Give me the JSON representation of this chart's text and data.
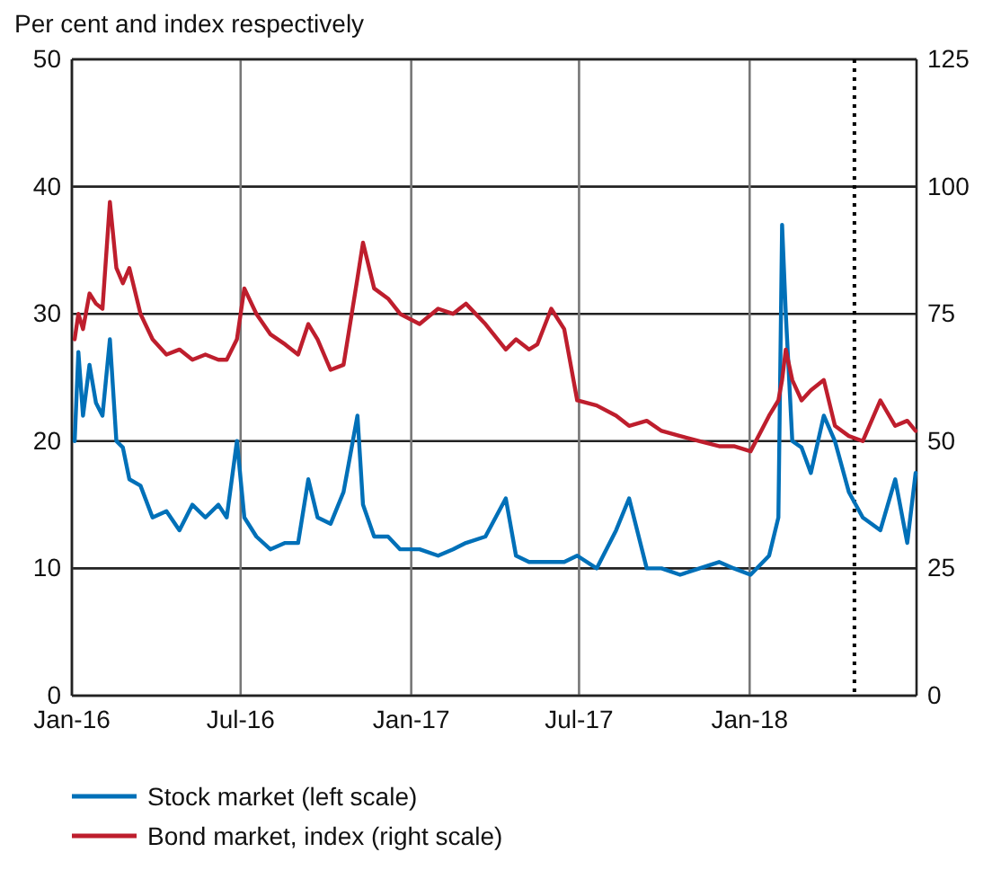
{
  "chart_data": {
    "type": "line",
    "title": "Per cent and index respectively",
    "xlim": [
      "2016-01-01",
      "2018-06-30"
    ],
    "xticks": [
      {
        "value": "2016-01-01",
        "label": "Jan-16"
      },
      {
        "value": "2016-07-01",
        "label": "Jul-16"
      },
      {
        "value": "2017-01-01",
        "label": "Jan-17"
      },
      {
        "value": "2017-07-01",
        "label": "Jul-17"
      },
      {
        "value": "2018-01-01",
        "label": "Jan-18"
      }
    ],
    "ylim": [
      0,
      50
    ],
    "yticks": [
      0,
      10,
      20,
      30,
      40,
      50
    ],
    "y2lim": [
      0,
      125
    ],
    "y2ticks": [
      0,
      25,
      50,
      75,
      100,
      125
    ],
    "grid": true,
    "legend": "bottom",
    "ref_lines": [
      {
        "axis": "x",
        "value": "2018-04-24",
        "label": null,
        "color": "#000000",
        "line_style": "dotted"
      }
    ],
    "x": [
      "2016-01-04",
      "2016-01-08",
      "2016-01-13",
      "2016-01-20",
      "2016-01-27",
      "2016-02-03",
      "2016-02-11",
      "2016-02-18",
      "2016-02-25",
      "2016-03-03",
      "2016-03-15",
      "2016-03-28",
      "2016-04-12",
      "2016-04-26",
      "2016-05-10",
      "2016-05-24",
      "2016-06-07",
      "2016-06-16",
      "2016-06-27",
      "2016-07-05",
      "2016-07-18",
      "2016-08-02",
      "2016-08-18",
      "2016-09-01",
      "2016-09-12",
      "2016-09-22",
      "2016-10-06",
      "2016-10-20",
      "2016-11-04",
      "2016-11-10",
      "2016-11-22",
      "2016-12-07",
      "2016-12-20",
      "2017-01-10",
      "2017-01-30",
      "2017-02-15",
      "2017-03-01",
      "2017-03-22",
      "2017-04-13",
      "2017-04-24",
      "2017-05-08",
      "2017-05-17",
      "2017-06-01",
      "2017-06-15",
      "2017-06-29",
      "2017-07-20",
      "2017-08-10",
      "2017-08-24",
      "2017-09-12",
      "2017-09-28",
      "2017-10-18",
      "2017-11-08",
      "2017-11-29",
      "2017-12-15",
      "2018-01-02",
      "2018-01-22",
      "2018-02-01",
      "2018-02-05",
      "2018-02-09",
      "2018-02-16",
      "2018-02-26",
      "2018-03-08",
      "2018-03-22",
      "2018-04-03",
      "2018-04-18",
      "2018-05-03",
      "2018-05-22",
      "2018-06-07",
      "2018-06-20",
      "2018-06-29"
    ],
    "series": [
      {
        "name": "Stock market (left scale)",
        "color": "#0070b8",
        "values": [
          20,
          27,
          22,
          26,
          23,
          22,
          28,
          20,
          19.5,
          17,
          16.5,
          14,
          14.5,
          13,
          15,
          14,
          15,
          14,
          20,
          14,
          12.5,
          11.5,
          12,
          12,
          17,
          14,
          13.5,
          16,
          22,
          15,
          12.5,
          12.5,
          11.5,
          11.5,
          11,
          11.5,
          12,
          12.5,
          15.5,
          11,
          10.5,
          10.5,
          10.5,
          10.5,
          11,
          10,
          13,
          15.5,
          10,
          10,
          9.5,
          10,
          10.5,
          10,
          9.5,
          11,
          14,
          37,
          30,
          20,
          19.5,
          17.5,
          22,
          20,
          16,
          14,
          13,
          17,
          12,
          17.5
        ]
      },
      {
        "name": "Bond market, index (right scale)",
        "axis": "y2",
        "color": "#be1e2d",
        "values": [
          70,
          75,
          72,
          79,
          77,
          76,
          97,
          84,
          81,
          84,
          75,
          70,
          67,
          68,
          66,
          67,
          66,
          66,
          70,
          80,
          75,
          71,
          69,
          67,
          73,
          70,
          64,
          65,
          82,
          89,
          80,
          78,
          75,
          73,
          76,
          75,
          77,
          73,
          68,
          70,
          68,
          69,
          76,
          72,
          58,
          57,
          55,
          53,
          54,
          52,
          51,
          50,
          49,
          49,
          48,
          55,
          58,
          62,
          68,
          62,
          58,
          60,
          62,
          53,
          51,
          50,
          58,
          53,
          54,
          52
        ]
      }
    ]
  }
}
